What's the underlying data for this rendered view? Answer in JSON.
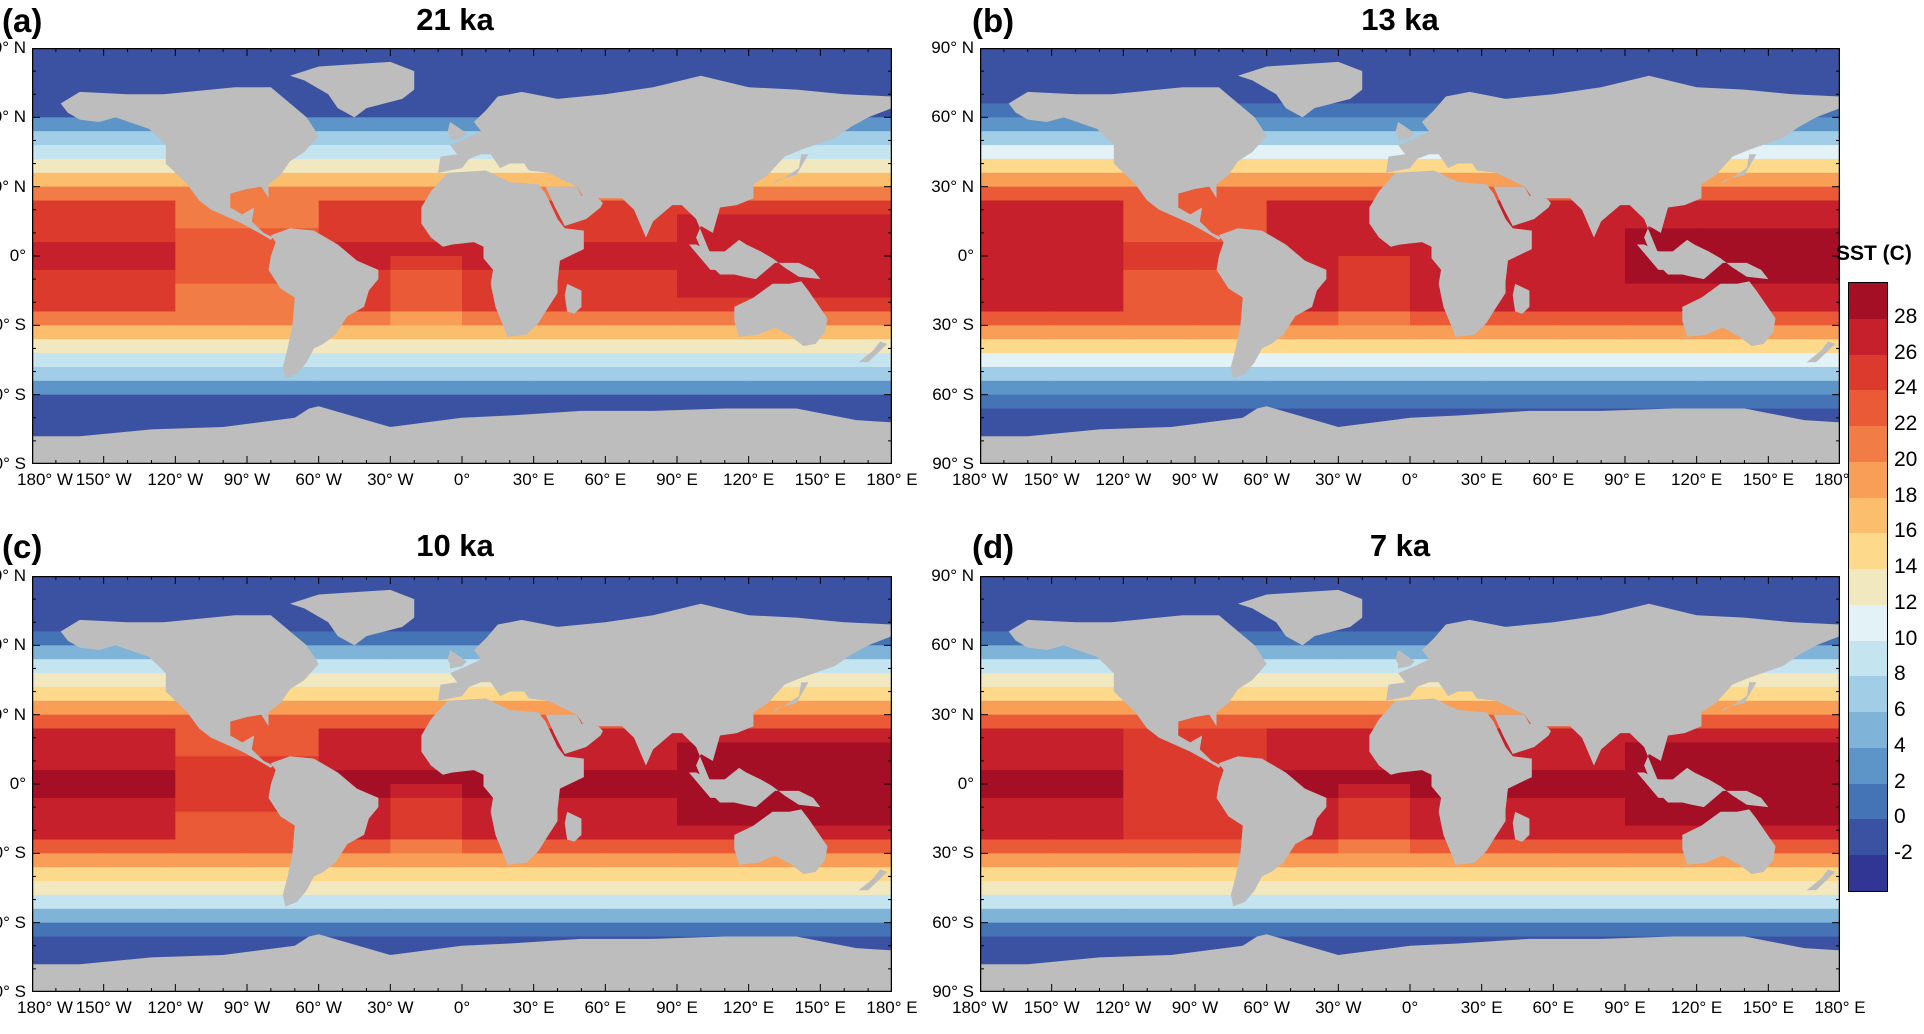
{
  "panels": [
    {
      "letter": "(a)",
      "title": "21 ka"
    },
    {
      "letter": "(b)",
      "title": "13 ka"
    },
    {
      "letter": "(c)",
      "title": "10 ka"
    },
    {
      "letter": "(d)",
      "title": "7 ka"
    }
  ],
  "lat_labels": [
    "90° N",
    "60° N",
    "30° N",
    "0°",
    "30° S",
    "60° S",
    "90° S"
  ],
  "lon_labels": [
    "180° W",
    "150° W",
    "120° W",
    "90° W",
    "60° W",
    "30° W",
    "0°",
    "30° E",
    "60° E",
    "90° E",
    "120° E",
    "150° E",
    "180° E"
  ],
  "colorbar": {
    "title": "SST (C)",
    "ticks": [
      "28",
      "26",
      "24",
      "22",
      "20",
      "18",
      "16",
      "14",
      "12",
      "10",
      "8",
      "6",
      "4",
      "2",
      "0",
      "-2"
    ],
    "colors": [
      "#a50f26",
      "#c5202b",
      "#dc3a2c",
      "#ea5a36",
      "#f27c45",
      "#f89e56",
      "#fbbe6d",
      "#fdd98c",
      "#f2e8c0",
      "#e2f2f7",
      "#c4e4f0",
      "#a2cde6",
      "#7fb3d8",
      "#5e95c8",
      "#4574b6",
      "#3b52a3",
      "#313695"
    ]
  },
  "land_color": "#bdbdbd"
}
